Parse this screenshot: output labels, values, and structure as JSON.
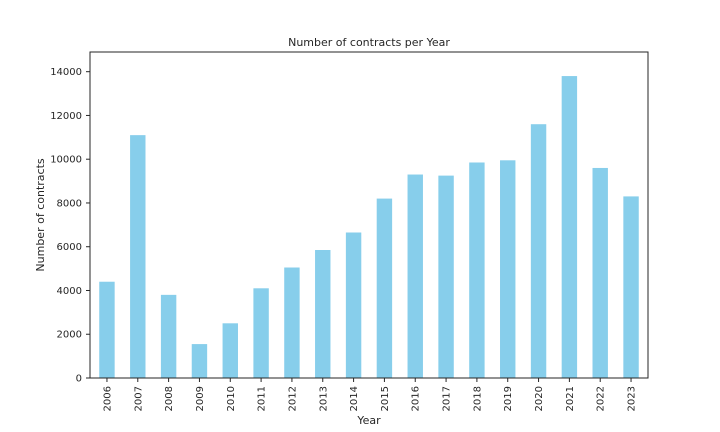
{
  "chart_data": {
    "type": "bar",
    "title": "Number of contracts per Year",
    "xlabel": "Year",
    "ylabel": "Number of contracts",
    "categories": [
      "2006",
      "2007",
      "2008",
      "2009",
      "2010",
      "2011",
      "2012",
      "2013",
      "2014",
      "2015",
      "2016",
      "2017",
      "2018",
      "2019",
      "2020",
      "2021",
      "2022",
      "2023"
    ],
    "values": [
      4400,
      11100,
      3800,
      1550,
      2500,
      4100,
      5050,
      5850,
      6650,
      8200,
      9300,
      9250,
      9850,
      9950,
      11600,
      13800,
      9600,
      8300
    ],
    "yticks": [
      0,
      2000,
      4000,
      6000,
      8000,
      10000,
      12000,
      14000
    ],
    "ylim": [
      0,
      14900
    ],
    "grid": false,
    "legend": "none",
    "bar_color": "#87ceeb"
  }
}
